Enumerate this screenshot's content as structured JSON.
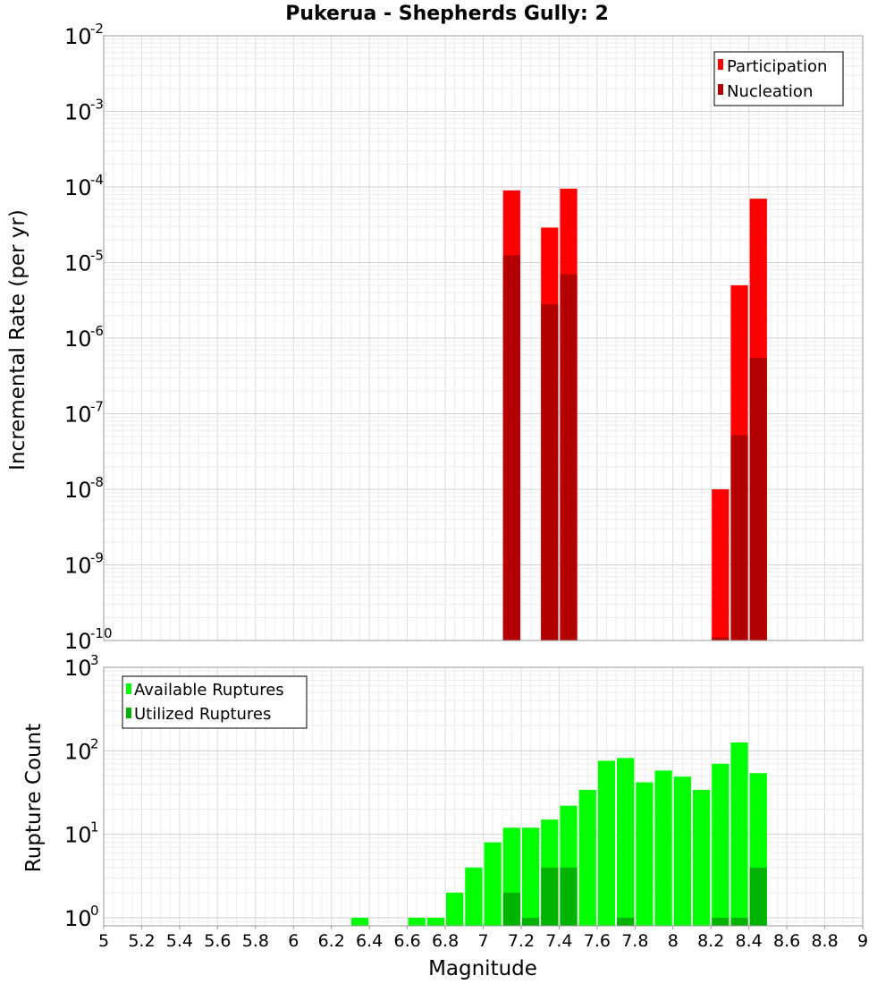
{
  "chart_data": [
    {
      "type": "bar",
      "title": "Pukerua - Shepherds Gully: 2",
      "xlabel": "Magnitude",
      "ylabel": "Incremental Rate (per yr)",
      "yscale": "log",
      "ylim": [
        1e-10,
        0.01
      ],
      "xlim": [
        5,
        9
      ],
      "grid": true,
      "legend_position": "top-right",
      "bin_width": 0.1,
      "series": [
        {
          "name": "Participation",
          "color": "#ff0000",
          "points": [
            {
              "x": 7.15,
              "y": 9e-05
            },
            {
              "x": 7.35,
              "y": 2.9e-05
            },
            {
              "x": 7.45,
              "y": 9.5e-05
            },
            {
              "x": 8.25,
              "y": 1e-08
            },
            {
              "x": 8.35,
              "y": 5e-06
            },
            {
              "x": 8.45,
              "y": 7e-05
            }
          ]
        },
        {
          "name": "Nucleation",
          "color": "#b30000",
          "points": [
            {
              "x": 7.15,
              "y": 1.25e-05
            },
            {
              "x": 7.35,
              "y": 2.8e-06
            },
            {
              "x": 7.45,
              "y": 7e-06
            },
            {
              "x": 8.25,
              "y": 1.1e-10
            },
            {
              "x": 8.35,
              "y": 5.2e-08
            },
            {
              "x": 8.45,
              "y": 5.5e-07
            }
          ]
        }
      ]
    },
    {
      "type": "bar",
      "title": "",
      "xlabel": "Magnitude",
      "ylabel": "Rupture Count",
      "yscale": "log",
      "ylim": [
        0.8,
        1000
      ],
      "xlim": [
        5,
        9
      ],
      "grid": true,
      "legend_position": "top-left",
      "bin_width": 0.1,
      "series": [
        {
          "name": "Available Ruptures",
          "color": "#00ff00",
          "points": [
            {
              "x": 6.35,
              "y": 1
            },
            {
              "x": 6.65,
              "y": 1
            },
            {
              "x": 6.75,
              "y": 1
            },
            {
              "x": 6.85,
              "y": 2
            },
            {
              "x": 6.95,
              "y": 4
            },
            {
              "x": 7.05,
              "y": 8
            },
            {
              "x": 7.15,
              "y": 12
            },
            {
              "x": 7.25,
              "y": 12
            },
            {
              "x": 7.35,
              "y": 15
            },
            {
              "x": 7.45,
              "y": 22
            },
            {
              "x": 7.55,
              "y": 34
            },
            {
              "x": 7.65,
              "y": 76
            },
            {
              "x": 7.75,
              "y": 82
            },
            {
              "x": 7.85,
              "y": 42
            },
            {
              "x": 7.95,
              "y": 58
            },
            {
              "x": 8.05,
              "y": 49
            },
            {
              "x": 8.15,
              "y": 34
            },
            {
              "x": 8.25,
              "y": 70
            },
            {
              "x": 8.35,
              "y": 126
            },
            {
              "x": 8.45,
              "y": 54
            }
          ]
        },
        {
          "name": "Utilized Ruptures",
          "color": "#00b300",
          "points": [
            {
              "x": 7.15,
              "y": 2
            },
            {
              "x": 7.25,
              "y": 1
            },
            {
              "x": 7.35,
              "y": 4
            },
            {
              "x": 7.45,
              "y": 4
            },
            {
              "x": 7.75,
              "y": 1
            },
            {
              "x": 8.25,
              "y": 1
            },
            {
              "x": 8.35,
              "y": 1
            },
            {
              "x": 8.45,
              "y": 4
            }
          ]
        }
      ]
    }
  ],
  "x_ticks": [
    "5",
    "5.2",
    "5.4",
    "5.6",
    "5.8",
    "6",
    "6.2",
    "6.4",
    "6.6",
    "6.8",
    "7",
    "7.2",
    "7.4",
    "7.6",
    "7.8",
    "8",
    "8.2",
    "8.4",
    "8.6",
    "8.8",
    "9"
  ],
  "top_y_ticks": [
    {
      "base": "10",
      "exp": "-2",
      "value": 0.01
    },
    {
      "base": "10",
      "exp": "-3",
      "value": 0.001
    },
    {
      "base": "10",
      "exp": "-4",
      "value": 0.0001
    },
    {
      "base": "10",
      "exp": "-5",
      "value": 1e-05
    },
    {
      "base": "10",
      "exp": "-6",
      "value": 1e-06
    },
    {
      "base": "10",
      "exp": "-7",
      "value": 1e-07
    },
    {
      "base": "10",
      "exp": "-8",
      "value": 1e-08
    },
    {
      "base": "10",
      "exp": "-9",
      "value": 1e-09
    },
    {
      "base": "10",
      "exp": "-10",
      "value": 1e-10
    }
  ],
  "bottom_y_ticks": [
    {
      "base": "10",
      "exp": "3",
      "value": 1000
    },
    {
      "base": "10",
      "exp": "2",
      "value": 100
    },
    {
      "base": "10",
      "exp": "1",
      "value": 10
    },
    {
      "base": "10",
      "exp": "0",
      "value": 1
    }
  ]
}
